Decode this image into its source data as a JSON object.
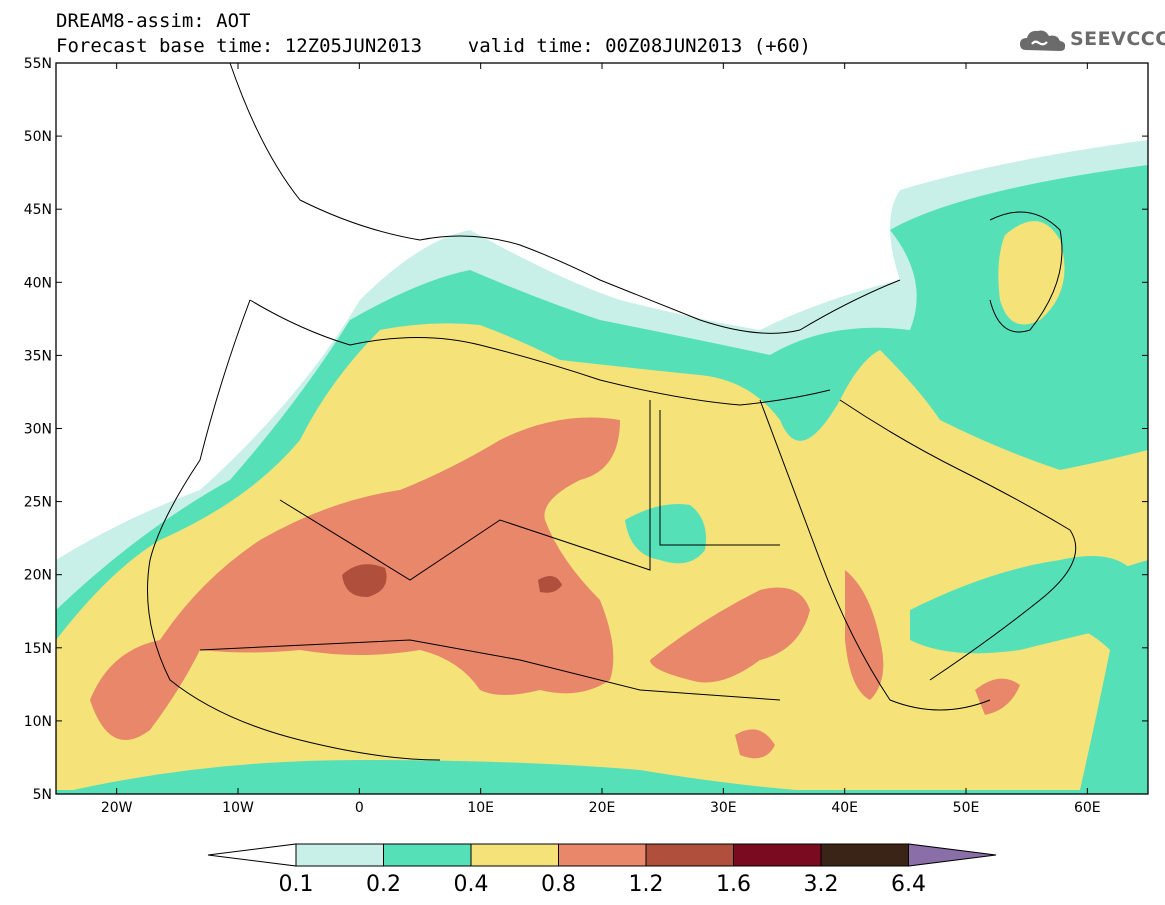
{
  "header": {
    "line1": "DREAM8-assim: AOT",
    "line2": "Forecast base time: 12Z05JUN2013    valid time: 00Z08JUN2013 (+60)"
  },
  "logo": {
    "text": "SEEVCCC",
    "icon": "cloud-icon",
    "color": "#6b6b6b"
  },
  "axes": {
    "lat_labels": [
      "55N",
      "50N",
      "45N",
      "40N",
      "35N",
      "30N",
      "25N",
      "20N",
      "15N",
      "10N",
      "5N"
    ],
    "lon_labels": [
      "20W",
      "10W",
      "0",
      "10E",
      "20E",
      "30E",
      "40E",
      "50E",
      "60E"
    ],
    "lon_range": [
      -25,
      65
    ],
    "lat_range": [
      5,
      55
    ]
  },
  "colorbar": {
    "labels": [
      "0.1",
      "0.2",
      "0.4",
      "0.8",
      "1.2",
      "1.6",
      "3.2",
      "6.4"
    ],
    "colors": [
      "#ffffff",
      "#c8f0e8",
      "#55e0b8",
      "#f5e37a",
      "#e8876a",
      "#b0503c",
      "#7a0a20",
      "#3a2418",
      "#8a6ea8"
    ]
  },
  "legend_levels": {
    "band_01_02": "#c8f0e8",
    "band_02_04": "#55e0b8",
    "band_04_08": "#f5e37a",
    "band_08_12": "#e8876a",
    "band_12_16": "#b0503c"
  }
}
